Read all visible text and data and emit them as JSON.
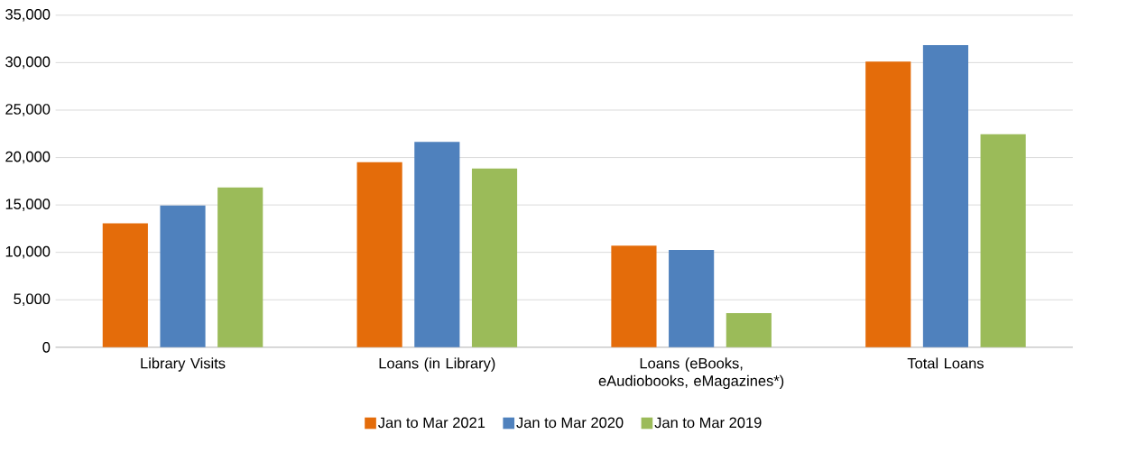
{
  "chart_data": {
    "type": "bar",
    "categories": [
      "Library Visits",
      "Loans (in Library)",
      "Loans (eBooks, eAudiobooks, eMagazines*)",
      "Total Loans"
    ],
    "series": [
      {
        "name": "Jan to Mar 2021",
        "color": "#e46c0a",
        "values": [
          13050,
          19500,
          10700,
          30100
        ]
      },
      {
        "name": "Jan to Mar 2020",
        "color": "#4f81bd",
        "values": [
          14950,
          21650,
          10250,
          31850
        ]
      },
      {
        "name": "Jan to Mar 2019",
        "color": "#9bbb59",
        "values": [
          16850,
          18850,
          3600,
          22450
        ]
      }
    ],
    "ylim": [
      0,
      35000
    ],
    "yticks": [
      {
        "value": 0,
        "label": "0"
      },
      {
        "value": 5000,
        "label": "5,000"
      },
      {
        "value": 10000,
        "label": "10,000"
      },
      {
        "value": 15000,
        "label": "15,000"
      },
      {
        "value": 20000,
        "label": "20,000"
      },
      {
        "value": 25000,
        "label": "25,000"
      },
      {
        "value": 30000,
        "label": "30,000"
      },
      {
        "value": 35000,
        "label": "35,000"
      }
    ],
    "grid": "y",
    "legend": "bottom"
  }
}
